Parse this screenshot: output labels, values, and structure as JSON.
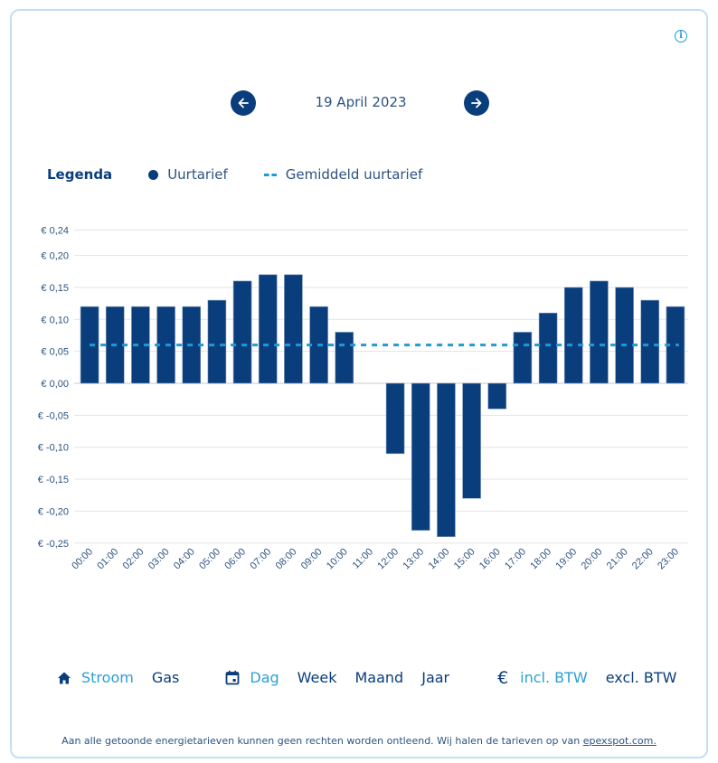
{
  "header": {
    "date": "19 April 2023",
    "prev_label": "previous-day",
    "next_label": "next-day",
    "info_icon": "i"
  },
  "legend": {
    "title": "Legenda",
    "items": [
      {
        "label": "Uurtarief",
        "icon": "circle",
        "color": "#0a3d7c"
      },
      {
        "label": "Gemiddeld uurtarief",
        "icon": "dashed-line",
        "color": "#1e9bd7"
      }
    ]
  },
  "toolbar": {
    "energy": {
      "icon": "home-icon",
      "options": [
        "Stroom",
        "Gas"
      ],
      "active": "Stroom"
    },
    "period": {
      "icon": "calendar-icon",
      "options": [
        "Dag",
        "Week",
        "Maand",
        "Jaar"
      ],
      "active": "Dag"
    },
    "tax": {
      "icon": "euro-icon",
      "icon_glyph": "€",
      "options": [
        "incl. BTW",
        "excl. BTW"
      ],
      "active": "incl. BTW"
    }
  },
  "footer": {
    "text": "Aan alle getoonde energietarieven kunnen geen rechten worden ontleend. Wij halen de tarieven op van ",
    "link": "epexspot.com."
  },
  "colors": {
    "bar": "#0a3d7c",
    "average": "#1e9bd7",
    "active": "#2a9fd8",
    "border": "#c4dfee"
  },
  "chart_data": {
    "type": "bar",
    "title": "",
    "xlabel": "",
    "ylabel": "",
    "categories": [
      "00:00",
      "01:00",
      "02:00",
      "03:00",
      "04:00",
      "05:00",
      "06:00",
      "07:00",
      "08:00",
      "09:00",
      "10:00",
      "11:00",
      "12:00",
      "13:00",
      "14:00",
      "15:00",
      "16:00",
      "17:00",
      "18:00",
      "19:00",
      "20:00",
      "21:00",
      "22:00",
      "23:00"
    ],
    "series": [
      {
        "name": "Uurtarief",
        "values": [
          0.12,
          0.12,
          0.12,
          0.12,
          0.12,
          0.13,
          0.16,
          0.17,
          0.17,
          0.12,
          0.08,
          0.0,
          -0.11,
          -0.23,
          -0.24,
          -0.18,
          -0.04,
          0.08,
          0.11,
          0.15,
          0.16,
          0.15,
          0.13,
          0.12
        ]
      },
      {
        "name": "Gemiddeld uurtarief",
        "type": "line",
        "style": "dashed",
        "value": 0.06
      }
    ],
    "ylim": [
      -0.25,
      0.24
    ],
    "yticks": [
      0.24,
      0.2,
      0.15,
      0.1,
      0.05,
      0.0,
      -0.05,
      -0.1,
      -0.15,
      -0.2,
      -0.25
    ],
    "ytick_labels": [
      "€ 0,24",
      "€ 0,20",
      "€ 0,15",
      "€ 0,10",
      "€ 0,05",
      "€ 0,00",
      "€ -0,05",
      "€ -0,10",
      "€ -0,15",
      "€ -0,20",
      "€ -0,25"
    ],
    "grid": true,
    "legend_position": "top-left"
  }
}
